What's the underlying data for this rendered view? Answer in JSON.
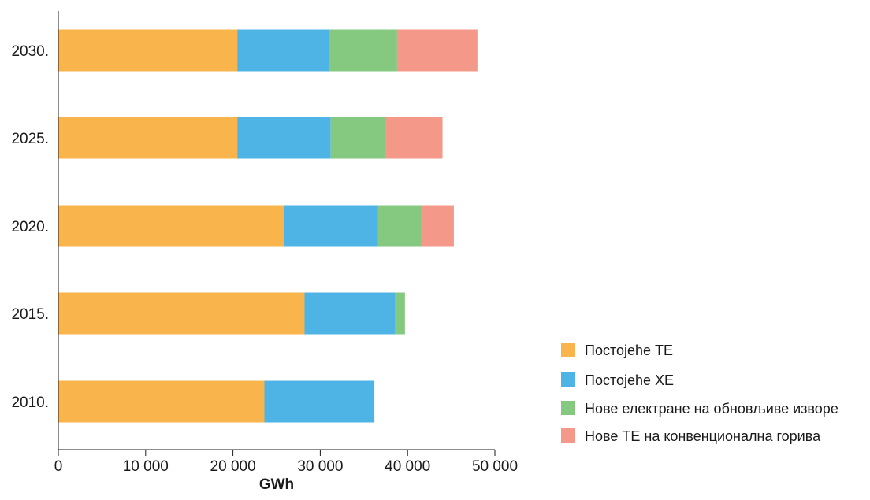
{
  "chart_data": {
    "type": "bar",
    "orientation": "horizontal",
    "stacked": true,
    "title": "",
    "xlabel": "GWh",
    "ylabel": "",
    "xlim": [
      0,
      50000
    ],
    "x_ticks": [
      0,
      10000,
      20000,
      30000,
      40000,
      50000
    ],
    "x_tick_labels": [
      "0",
      "10 000",
      "20 000",
      "30 000",
      "40 000",
      "50 000"
    ],
    "categories": [
      "2030.",
      "2025.",
      "2020.",
      "2015.",
      "2010."
    ],
    "grid": false,
    "legend_position": "bottom-right",
    "series": [
      {
        "name": "Постојеће ТЕ",
        "color": "#F9B44B",
        "values": [
          20500,
          20500,
          25900,
          28200,
          23600
        ]
      },
      {
        "name": "Постојеће ХЕ",
        "color": "#4EB4E6",
        "values": [
          10500,
          10700,
          10700,
          10400,
          12600
        ]
      },
      {
        "name": "Нове електране на обновљиве изворе",
        "color": "#85C980",
        "values": [
          7800,
          6200,
          5000,
          1100,
          0
        ]
      },
      {
        "name": "Нове ТЕ на конвенционална горива",
        "color": "#F4988A",
        "values": [
          9200,
          6600,
          3700,
          0,
          0
        ]
      }
    ]
  }
}
